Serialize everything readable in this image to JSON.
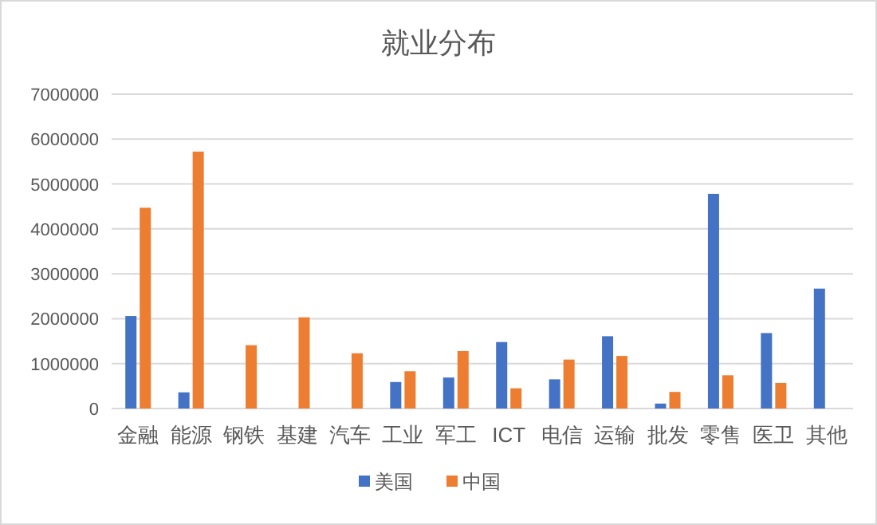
{
  "chart_data": {
    "type": "bar",
    "title": "就业分布",
    "categories": [
      "金融",
      "能源",
      "钢铁",
      "基建",
      "汽车",
      "工业",
      "军工",
      "ICT",
      "电信",
      "运输",
      "批发",
      "零售",
      "医卫",
      "其他"
    ],
    "series": [
      {
        "name": "美国",
        "color": "#4472c4",
        "values": [
          2060000,
          360000,
          null,
          null,
          null,
          590000,
          690000,
          1480000,
          650000,
          1610000,
          110000,
          4780000,
          1680000,
          2670000
        ]
      },
      {
        "name": "中国",
        "color": "#ed7d31",
        "values": [
          4470000,
          5720000,
          1410000,
          2030000,
          1230000,
          830000,
          1280000,
          450000,
          1090000,
          1170000,
          370000,
          740000,
          570000,
          null
        ]
      }
    ],
    "ylim": [
      0,
      7000000
    ],
    "yticks": [
      0,
      1000000,
      2000000,
      3000000,
      4000000,
      5000000,
      6000000,
      7000000
    ],
    "grid": "y",
    "legend": "bottom"
  }
}
